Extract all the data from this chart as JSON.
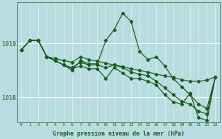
{
  "background_color": "#b8dde0",
  "grid_color_h": "#ffffff",
  "grid_color_v": "#c8e8eb",
  "line_color": "#1a5c1a",
  "xlabel": "Graphe pression niveau de la mer (hPa)",
  "ylim": [
    1017.55,
    1019.75
  ],
  "yticks": [
    1018.0,
    1019.0
  ],
  "xlim": [
    -0.5,
    23.5
  ],
  "series": {
    "line1": [
      1018.88,
      1019.05,
      1019.05,
      1018.75,
      1018.72,
      1018.68,
      1018.65,
      1018.75,
      1018.7,
      1018.67,
      1018.63,
      1018.6,
      1018.57,
      1018.53,
      1018.5,
      1018.47,
      1018.43,
      1018.4,
      1018.37,
      1018.33,
      1018.3,
      1018.3,
      1018.32,
      1018.38
    ],
    "line2": [
      1018.88,
      1019.05,
      1019.05,
      1018.75,
      1018.68,
      1018.6,
      1018.5,
      1018.68,
      1018.62,
      1018.62,
      1019.05,
      1019.25,
      1019.55,
      1019.4,
      1018.85,
      1018.7,
      1018.75,
      1018.58,
      1018.35,
      1018.2,
      1018.05,
      1017.88,
      1017.8,
      1018.38
    ],
    "line3": [
      1018.88,
      1019.05,
      1019.05,
      1018.75,
      1018.68,
      1018.6,
      1018.55,
      1018.65,
      1018.6,
      1018.6,
      1018.55,
      1018.6,
      1018.55,
      1018.47,
      1018.43,
      1018.4,
      1018.3,
      1018.18,
      1018.05,
      1017.93,
      1017.88,
      1017.75,
      1017.7,
      1018.38
    ],
    "line4": [
      1018.88,
      1019.05,
      1019.05,
      1018.75,
      1018.68,
      1018.6,
      1018.53,
      1018.58,
      1018.53,
      1018.53,
      1018.35,
      1018.55,
      1018.45,
      1018.35,
      1018.35,
      1018.3,
      1018.23,
      1018.05,
      1017.92,
      1017.88,
      1018.08,
      1017.63,
      1017.58,
      1018.38
    ]
  }
}
